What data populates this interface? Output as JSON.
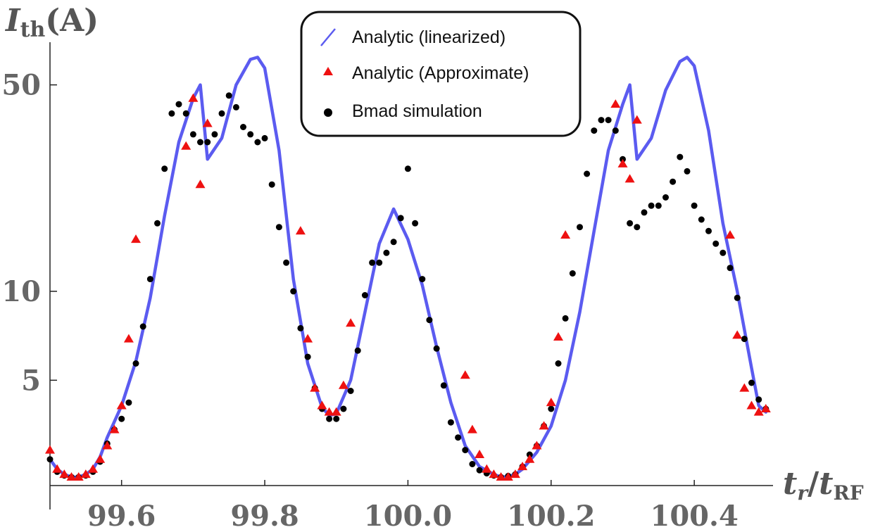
{
  "chart_data": {
    "type": "scatter",
    "title": "",
    "xlabel": {
      "main": "t",
      "sub_main": "r",
      "slash": "/",
      "denom": "t",
      "sub_denom": "RF"
    },
    "ylabel": {
      "main": "I",
      "sub": "th",
      "unit": "(A)"
    },
    "xlim": [
      99.5,
      100.51
    ],
    "ylim": [
      2.2,
      66
    ],
    "yscale": "log",
    "x_ticks": [
      {
        "value": 99.6,
        "label": "99.6"
      },
      {
        "value": 99.8,
        "label": "99.8"
      },
      {
        "value": 100.0,
        "label": "100.0"
      },
      {
        "value": 100.2,
        "label": "100.2"
      },
      {
        "value": 100.4,
        "label": "100.4"
      }
    ],
    "y_ticks": [
      {
        "value": 5,
        "label": "5"
      },
      {
        "value": 10,
        "label": "10"
      },
      {
        "value": 50,
        "label": "50"
      }
    ],
    "legend": {
      "position": "top-center",
      "entries": [
        {
          "label": "Analytic (linearized)",
          "marker": "line"
        },
        {
          "label": "Analytic (Approximate)",
          "marker": "triangle"
        },
        {
          "label": "Bmad simulation",
          "marker": "dot"
        }
      ]
    },
    "series": [
      {
        "name": "Analytic (linearized)",
        "kind": "line",
        "color": "#5b5bf0",
        "x": [
          99.5,
          99.51,
          99.52,
          99.53,
          99.54,
          99.55,
          99.56,
          99.57,
          99.58,
          99.6,
          99.62,
          99.64,
          99.66,
          99.68,
          99.7,
          99.71,
          99.72,
          99.74,
          99.76,
          99.78,
          99.79,
          99.8,
          99.82,
          99.84,
          99.86,
          99.88,
          99.89,
          99.9,
          99.92,
          99.94,
          99.96,
          99.98,
          100.0,
          100.02,
          100.04,
          100.06,
          100.08,
          100.1,
          100.12,
          100.13,
          100.14,
          100.15,
          100.16,
          100.18,
          100.2,
          100.22,
          100.24,
          100.26,
          100.28,
          100.3,
          100.31,
          100.32,
          100.34,
          100.36,
          100.38,
          100.39,
          100.4,
          100.42,
          100.44,
          100.46,
          100.48,
          100.49,
          100.5
        ],
        "y": [
          2.7,
          2.5,
          2.4,
          2.35,
          2.35,
          2.4,
          2.5,
          2.75,
          3.2,
          4.1,
          5.8,
          9.5,
          18,
          32,
          45,
          50,
          28,
          33,
          50,
          61,
          62,
          57,
          30,
          11,
          5.7,
          4.05,
          3.8,
          3.85,
          5.0,
          8.5,
          14.5,
          19,
          15,
          10.5,
          6.5,
          4.2,
          3.0,
          2.55,
          2.4,
          2.35,
          2.36,
          2.4,
          2.5,
          2.85,
          3.5,
          5.0,
          8.5,
          16,
          30,
          43,
          50,
          28,
          33,
          48,
          60,
          62,
          58,
          35,
          17,
          10,
          5.5,
          4.1,
          3.9
        ]
      },
      {
        "name": "Analytic (Approximate)",
        "kind": "triangle",
        "color": "#ee1111",
        "x": [
          99.5,
          99.51,
          99.52,
          99.53,
          99.54,
          99.55,
          99.56,
          99.57,
          99.58,
          99.59,
          99.6,
          99.61,
          99.62,
          99.69,
          99.7,
          99.71,
          99.72,
          99.85,
          99.86,
          99.87,
          99.88,
          99.89,
          99.9,
          99.91,
          99.92,
          100.08,
          100.09,
          100.1,
          100.11,
          100.12,
          100.13,
          100.14,
          100.15,
          100.16,
          100.17,
          100.18,
          100.19,
          100.2,
          100.21,
          100.22,
          100.29,
          100.3,
          100.31,
          100.32,
          100.45,
          100.46,
          100.47,
          100.48,
          100.49,
          100.5
        ],
        "y": [
          2.9,
          2.5,
          2.4,
          2.35,
          2.35,
          2.4,
          2.5,
          2.7,
          3.0,
          3.4,
          4.1,
          6.9,
          15,
          31,
          45,
          23,
          37,
          16,
          6.9,
          4.7,
          4.1,
          3.9,
          3.9,
          4.8,
          7.8,
          5.2,
          3.4,
          2.8,
          2.5,
          2.4,
          2.35,
          2.35,
          2.4,
          2.55,
          2.7,
          3.0,
          3.5,
          4.2,
          7.0,
          15.5,
          43,
          27,
          24,
          38,
          15.5,
          7.1,
          4.7,
          4.1,
          3.9,
          4.0
        ]
      },
      {
        "name": "Bmad simulation",
        "kind": "dot",
        "color": "#000000",
        "x": [
          99.5,
          99.51,
          99.52,
          99.53,
          99.54,
          99.55,
          99.56,
          99.57,
          99.58,
          99.59,
          99.6,
          99.61,
          99.62,
          99.63,
          99.64,
          99.65,
          99.66,
          99.67,
          99.68,
          99.69,
          99.7,
          99.71,
          99.72,
          99.73,
          99.74,
          99.75,
          99.76,
          99.77,
          99.78,
          99.79,
          99.8,
          99.81,
          99.82,
          99.83,
          99.84,
          99.85,
          99.86,
          99.87,
          99.88,
          99.89,
          99.9,
          99.91,
          99.92,
          99.93,
          99.94,
          99.95,
          99.96,
          99.97,
          99.98,
          99.99,
          100.0,
          100.01,
          100.02,
          100.03,
          100.04,
          100.05,
          100.06,
          100.07,
          100.08,
          100.09,
          100.1,
          100.11,
          100.12,
          100.13,
          100.14,
          100.15,
          100.16,
          100.17,
          100.18,
          100.19,
          100.2,
          100.21,
          100.22,
          100.23,
          100.24,
          100.25,
          100.26,
          100.27,
          100.28,
          100.29,
          100.3,
          100.31,
          100.32,
          100.33,
          100.34,
          100.35,
          100.36,
          100.37,
          100.38,
          100.39,
          100.4,
          100.41,
          100.42,
          100.43,
          100.44,
          100.45,
          100.46,
          100.47,
          100.48,
          100.49,
          100.5
        ],
        "y": [
          2.7,
          2.45,
          2.38,
          2.35,
          2.35,
          2.38,
          2.45,
          2.65,
          3.05,
          3.4,
          3.7,
          4.2,
          5.7,
          7.6,
          11,
          17,
          26,
          40,
          43,
          40,
          34,
          32,
          32,
          34,
          40,
          46,
          42,
          36,
          34,
          32,
          33,
          23,
          16.5,
          12.5,
          10,
          7.5,
          6,
          4.7,
          4,
          3.7,
          3.7,
          4,
          4.6,
          6.3,
          9.7,
          12.5,
          12.5,
          13.5,
          14.7,
          17.7,
          26,
          17,
          11,
          8.0,
          6.4,
          4.8,
          3.6,
          3.2,
          2.9,
          2.6,
          2.48,
          2.42,
          2.38,
          2.35,
          2.37,
          2.4,
          2.55,
          2.8,
          3.0,
          3.5,
          4.0,
          5.7,
          8.1,
          11.5,
          16.5,
          25,
          35,
          38,
          38,
          35,
          28,
          17,
          16.5,
          18.5,
          19.5,
          19.5,
          20.8,
          23.5,
          28.5,
          25.5,
          19.5,
          17.5,
          16,
          14.5,
          13.5,
          12,
          9.5,
          6.9,
          4.9,
          4.3,
          4.0
        ]
      }
    ]
  }
}
